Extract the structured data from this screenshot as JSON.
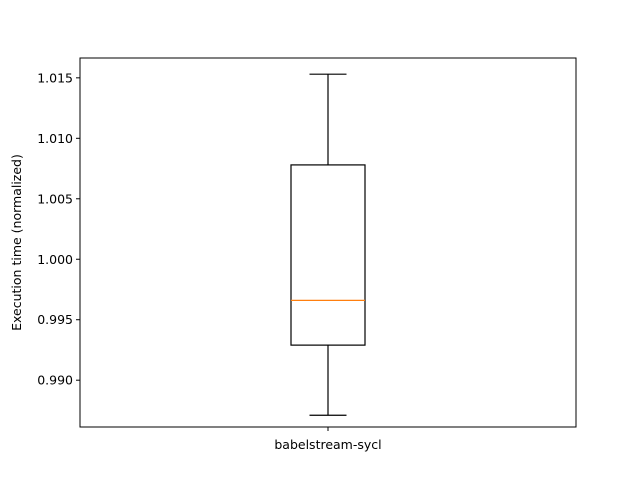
{
  "chart_data": {
    "type": "boxplot",
    "categories": [
      "babelstream-sycl"
    ],
    "ylabel": "Execution time (normalized)",
    "xlabel": "",
    "ylim": [
      0.98613,
      1.01664
    ],
    "yticks": [
      "0.990",
      "0.995",
      "1.000",
      "1.005",
      "1.010",
      "1.015"
    ],
    "grid": false,
    "boxes": [
      {
        "label": "babelstream-sycl",
        "whisker_low": 0.9871,
        "q1": 0.9929,
        "median": 0.9966,
        "q3": 1.0078,
        "whisker_high": 1.0153
      }
    ],
    "colors": {
      "median": "#ff7f0e",
      "box": "#000000"
    }
  }
}
